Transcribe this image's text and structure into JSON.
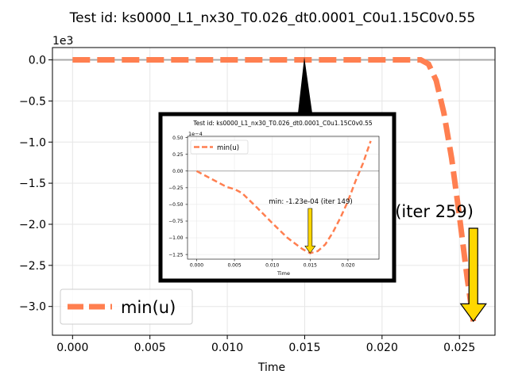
{
  "chart_data": [
    {
      "type": "line",
      "title": "Test id:  ks0000_L1_nx30_T0.026_dt0.0001_C0u1.15C0v0.55",
      "xlabel": "Time",
      "ylabel": "",
      "y_scale_label": "1e3",
      "xlim": [
        -0.0013,
        0.0273
      ],
      "ylim": [
        -3.35,
        0.15
      ],
      "x_ticks": [
        0.0,
        0.005,
        0.01,
        0.015,
        0.02,
        0.025
      ],
      "x_tick_labels": [
        "0.000",
        "0.005",
        "0.010",
        "0.015",
        "0.020",
        "0.025"
      ],
      "y_ticks": [
        0.0,
        -0.5,
        -1.0,
        -1.5,
        -2.0,
        -2.5,
        -3.0
      ],
      "y_tick_labels": [
        "0.0",
        "−0.5",
        "−1.0",
        "−1.5",
        "−2.0",
        "−2.5",
        "−3.0"
      ],
      "grid": true,
      "reference_line_y": 0.0,
      "legend": {
        "position": "bottom-left"
      },
      "series": [
        {
          "name": "min(u)",
          "color": "#ff7f50",
          "style": "dashed",
          "x": [
            0.0,
            0.005,
            0.01,
            0.015,
            0.02,
            0.0225,
            0.023,
            0.0235,
            0.024,
            0.0245,
            0.025,
            0.0255,
            0.0259
          ],
          "y": [
            0.0,
            0.0,
            0.0,
            0.0,
            0.0,
            0.0,
            -0.05,
            -0.25,
            -0.65,
            -1.2,
            -1.9,
            -2.65,
            -3.18
          ]
        }
      ],
      "annotation": {
        "text": "min: -3.18e+03 (iter 259)",
        "x": 0.0259,
        "y": -3.18,
        "arrow_color": "#ffd700"
      }
    },
    {
      "type": "line",
      "title": "Test id:  ks0000_L1_nx30_T0.026_dt0.0001_C0u1.15C0v0.55",
      "xlabel": "Time",
      "ylabel": "",
      "y_scale_label": "1e−4",
      "xlim": [
        -0.0012,
        0.0241
      ],
      "ylim": [
        -1.32,
        0.52
      ],
      "x_ticks": [
        0.0,
        0.005,
        0.01,
        0.015,
        0.02
      ],
      "x_tick_labels": [
        "0.000",
        "0.005",
        "0.010",
        "0.015",
        "0.020"
      ],
      "y_ticks": [
        0.5,
        0.25,
        0.0,
        -0.25,
        -0.5,
        -0.75,
        -1.0,
        -1.25
      ],
      "y_tick_labels": [
        "0.50",
        "0.25",
        "0.00",
        "−0.25",
        "−0.50",
        "−0.75",
        "−1.00",
        "−1.25"
      ],
      "grid": true,
      "reference_line_y": 0.0,
      "legend": {
        "position": "top-left"
      },
      "series": [
        {
          "name": "min(u)",
          "color": "#ff7f50",
          "style": "dashed",
          "x": [
            0.0,
            0.002,
            0.004,
            0.005,
            0.006,
            0.008,
            0.01,
            0.012,
            0.014,
            0.015,
            0.016,
            0.017,
            0.018,
            0.019,
            0.02,
            0.021,
            0.022,
            0.023
          ],
          "y": [
            0.0,
            -0.12,
            -0.24,
            -0.27,
            -0.33,
            -0.55,
            -0.78,
            -1.0,
            -1.17,
            -1.23,
            -1.2,
            -1.1,
            -0.92,
            -0.7,
            -0.45,
            -0.15,
            0.12,
            0.45
          ]
        }
      ],
      "annotation": {
        "text": "min: -1.23e-04 (iter 149)",
        "x": 0.015,
        "y": -1.23,
        "arrow_color": "#ffd700"
      }
    }
  ]
}
